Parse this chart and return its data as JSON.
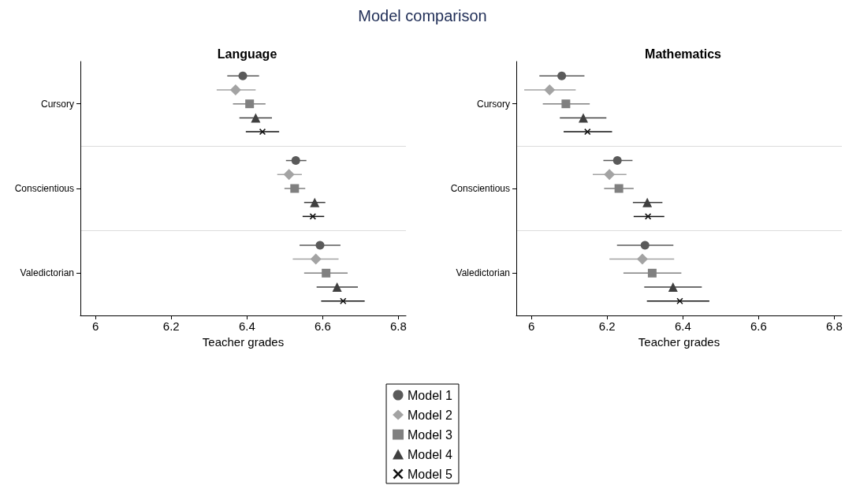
{
  "chart_data": [
    {
      "type": "scatter",
      "orientation": "horizontal",
      "title": "Language",
      "xlabel": "Teacher grades",
      "annotations": [
        "Model comparison"
      ],
      "categories": [
        "Cursory",
        "Conscientious",
        "Valedictorian"
      ],
      "xlim": [
        5.96,
        6.82
      ],
      "xticks": [
        6,
        6.2,
        6.4,
        6.6,
        6.8
      ],
      "grid": "y",
      "legend": "bottom",
      "series": [
        {
          "name": "Model 1",
          "color": "#5a5a5a",
          "marker": "circle",
          "values": [
            6.389,
            6.529,
            6.593
          ],
          "errors": [
            [
              6.348,
              6.432
            ],
            [
              6.503,
              6.557
            ],
            [
              6.539,
              6.647
            ]
          ]
        },
        {
          "name": "Model 2",
          "color": "#a3a3a3",
          "marker": "diamond",
          "values": [
            6.37,
            6.511,
            6.582
          ],
          "errors": [
            [
              6.32,
              6.423
            ],
            [
              6.48,
              6.545
            ],
            [
              6.521,
              6.642
            ]
          ]
        },
        {
          "name": "Model 3",
          "color": "#808080",
          "marker": "square",
          "values": [
            6.407,
            6.526,
            6.609
          ],
          "errors": [
            [
              6.363,
              6.449
            ],
            [
              6.499,
              6.554
            ],
            [
              6.551,
              6.666
            ]
          ]
        },
        {
          "name": "Model 4",
          "color": "#404040",
          "marker": "triangle",
          "values": [
            6.423,
            6.579,
            6.638
          ],
          "errors": [
            [
              6.38,
              6.466
            ],
            [
              6.551,
              6.607
            ],
            [
              6.584,
              6.693
            ]
          ]
        },
        {
          "name": "Model 5",
          "color": "#111111",
          "marker": "cross",
          "values": [
            6.441,
            6.574,
            6.654
          ],
          "errors": [
            [
              6.397,
              6.485
            ],
            [
              6.547,
              6.604
            ],
            [
              6.596,
              6.711
            ]
          ]
        }
      ]
    },
    {
      "type": "scatter",
      "orientation": "horizontal",
      "title": "Mathematics",
      "xlabel": "Teacher grades",
      "categories": [
        "Cursory",
        "Conscientious",
        "Valedictorian"
      ],
      "xlim": [
        5.96,
        6.82
      ],
      "xticks": [
        6,
        6.2,
        6.4,
        6.6,
        6.8
      ],
      "grid": "y",
      "series": [
        {
          "color": "#5a5a5a",
          "marker": "circle",
          "values": [
            6.08,
            6.227,
            6.3
          ],
          "errors": [
            [
              6.021,
              6.14
            ],
            [
              6.19,
              6.267
            ],
            [
              6.226,
              6.375
            ]
          ]
        },
        {
          "color": "#a3a3a3",
          "marker": "diamond",
          "values": [
            6.048,
            6.206,
            6.293
          ],
          "errors": [
            [
              5.981,
              6.117
            ],
            [
              6.162,
              6.251
            ],
            [
              6.206,
              6.377
            ]
          ]
        },
        {
          "color": "#808080",
          "marker": "square",
          "values": [
            6.091,
            6.231,
            6.319
          ],
          "errors": [
            [
              6.03,
              6.154
            ],
            [
              6.192,
              6.27
            ],
            [
              6.243,
              6.396
            ]
          ]
        },
        {
          "color": "#404040",
          "marker": "triangle",
          "values": [
            6.137,
            6.306,
            6.374
          ],
          "errors": [
            [
              6.075,
              6.198
            ],
            [
              6.268,
              6.346
            ],
            [
              6.298,
              6.45
            ]
          ]
        },
        {
          "color": "#111111",
          "marker": "cross",
          "values": [
            6.148,
            6.308,
            6.392
          ],
          "errors": [
            [
              6.085,
              6.213
            ],
            [
              6.27,
              6.351
            ],
            [
              6.305,
              6.47
            ]
          ]
        }
      ]
    }
  ]
}
